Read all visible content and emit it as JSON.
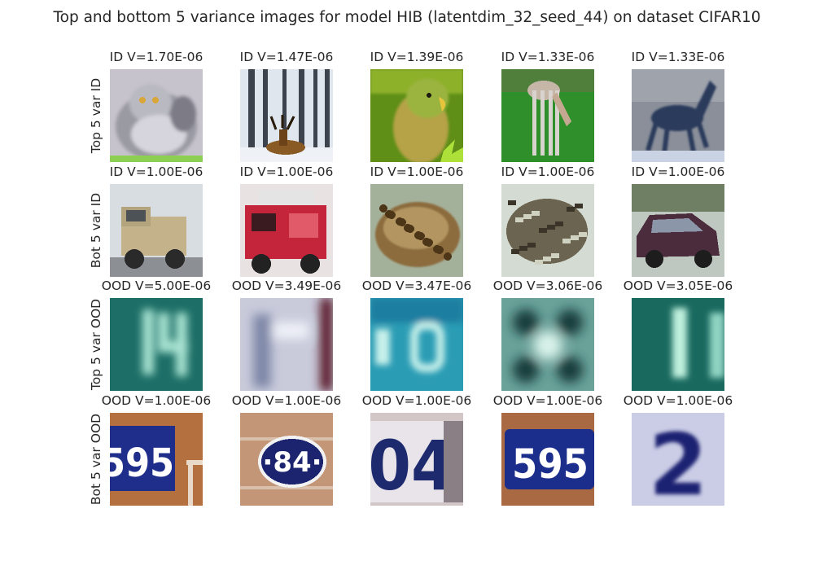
{
  "figure": {
    "title": "Top and bottom 5 variance images for model HIB (latentdim_32_seed_44) on dataset CIFAR10"
  },
  "rows": [
    {
      "label": "Top 5 var ID",
      "images": [
        {
          "title": "ID V=1.70E-06",
          "depicts": "grey fluffy cat"
        },
        {
          "title": "ID V=1.47E-06",
          "depicts": "deer in snowy forest"
        },
        {
          "title": "ID V=1.39E-06",
          "depicts": "green parrot"
        },
        {
          "title": "ID V=1.33E-06",
          "depicts": "deer grazing on grass"
        },
        {
          "title": "ID V=1.33E-06",
          "depicts": "dark horse statue"
        }
      ]
    },
    {
      "label": "Bot 5 var ID",
      "images": [
        {
          "title": "ID V=1.00E-06",
          "depicts": "beige truck"
        },
        {
          "title": "ID V=1.00E-06",
          "depicts": "red fire truck"
        },
        {
          "title": "ID V=1.00E-06",
          "depicts": "brown frog"
        },
        {
          "title": "ID V=1.00E-06",
          "depicts": "mottled frog"
        },
        {
          "title": "ID V=1.00E-06",
          "depicts": "dark red car"
        }
      ]
    },
    {
      "label": "Top 5 var OOD",
      "images": [
        {
          "title": "OOD V=5.00E-06",
          "depicts": "blurry teal digits 14"
        },
        {
          "title": "OOD V=3.49E-06",
          "depicts": "blurry pale digit"
        },
        {
          "title": "OOD V=3.47E-06",
          "depicts": "blurry blue digits"
        },
        {
          "title": "OOD V=3.06E-06",
          "depicts": "blurry teal pattern"
        },
        {
          "title": "OOD V=3.05E-06",
          "depicts": "blurry teal digits 1"
        }
      ]
    },
    {
      "label": "Bot 5 var OOD",
      "images": [
        {
          "title": "OOD V=1.00E-06",
          "depicts": "house number 595 on brick"
        },
        {
          "title": "OOD V=1.00E-06",
          "depicts": "oval plate 84"
        },
        {
          "title": "OOD V=1.00E-06",
          "depicts": "house number 04"
        },
        {
          "title": "OOD V=1.00E-06",
          "depicts": "house number 595"
        },
        {
          "title": "OOD V=1.00E-06",
          "depicts": "blurry blue 2"
        }
      ]
    }
  ]
}
